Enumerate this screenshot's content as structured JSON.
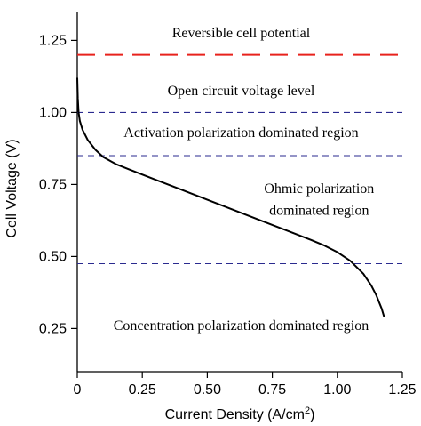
{
  "chart_data": {
    "type": "line",
    "xlabel": "Current Density (A/cm",
    "xlabel_sup": "2",
    "xlabel_suffix": ")",
    "ylabel": "Cell Voltage (V)",
    "xlim": [
      0,
      1.25
    ],
    "ylim": [
      0.1,
      1.35
    ],
    "x_ticks": [
      0,
      0.25,
      0.5,
      0.75,
      1.0,
      1.25
    ],
    "x_tick_labels": [
      "0",
      "0.25",
      "0.50",
      "0.75",
      "1.00",
      "1.25"
    ],
    "y_ticks": [
      0.25,
      0.5,
      0.75,
      1.0,
      1.25
    ],
    "y_tick_labels": [
      "0.25",
      "0.50",
      "0.75",
      "1.00",
      "1.25"
    ],
    "grid": false,
    "curve": {
      "color": "#000000",
      "x": [
        0.0,
        0.002,
        0.005,
        0.01,
        0.02,
        0.04,
        0.07,
        0.1,
        0.15,
        0.2,
        0.3,
        0.4,
        0.5,
        0.6,
        0.7,
        0.8,
        0.9,
        0.95,
        1.0,
        1.05,
        1.1,
        1.13,
        1.15,
        1.17,
        1.18
      ],
      "y": [
        1.12,
        1.05,
        1.0,
        0.97,
        0.94,
        0.905,
        0.87,
        0.845,
        0.82,
        0.802,
        0.767,
        0.732,
        0.697,
        0.662,
        0.627,
        0.592,
        0.557,
        0.538,
        0.515,
        0.485,
        0.44,
        0.4,
        0.365,
        0.32,
        0.29
      ]
    },
    "reference_lines": [
      {
        "y": 1.2,
        "color": "#e8221c",
        "style": "long-dash"
      },
      {
        "y": 1.0,
        "color": "#2a2a8f",
        "style": "dash"
      },
      {
        "y": 0.85,
        "color": "#2a2a8f",
        "style": "dash"
      },
      {
        "y": 0.475,
        "color": "#2a2a8f",
        "style": "dash"
      }
    ],
    "annotations": [
      {
        "text": "Reversible cell potential",
        "x": 0.63,
        "y": 1.26
      },
      {
        "text": "Open circuit voltage level",
        "x": 0.63,
        "y": 1.06
      },
      {
        "text": "Activation polarization dominated region",
        "x": 0.63,
        "y": 0.915
      },
      {
        "text": "Ohmic polarization",
        "x": 0.93,
        "y": 0.72
      },
      {
        "text": "dominated region",
        "x": 0.93,
        "y": 0.645
      },
      {
        "text": "Concentration polarization dominated region",
        "x": 0.63,
        "y": 0.245
      }
    ]
  }
}
